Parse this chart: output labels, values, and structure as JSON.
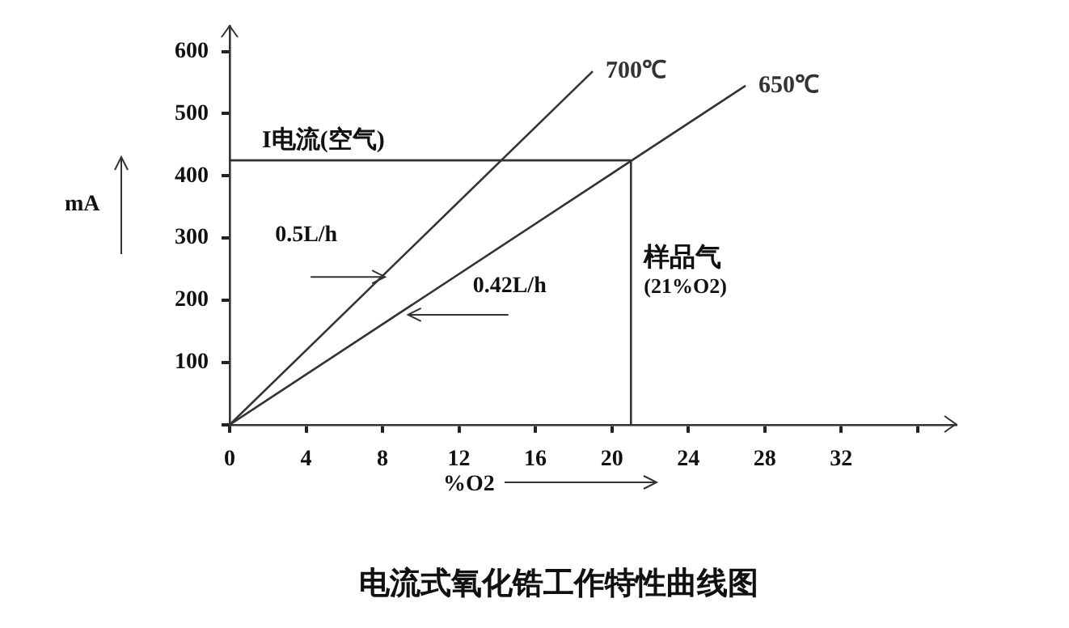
{
  "chart_data": {
    "type": "line",
    "title": "电流式氧化锆工作特性曲线图",
    "xlabel": "%O2",
    "ylabel": "mA",
    "series": [
      {
        "name": "700℃",
        "color": "#333333",
        "x": [
          0,
          19
        ],
        "values": [
          0,
          568
        ]
      },
      {
        "name": "650℃",
        "color": "#333333",
        "x": [
          0,
          27
        ],
        "values": [
          0,
          545
        ]
      }
    ],
    "xlim": [
      0,
      38
    ],
    "xticks": [
      0,
      4,
      8,
      12,
      16,
      20,
      24,
      28,
      32,
      {
        "value": 36,
        "label": null
      }
    ],
    "ylim": [
      0,
      640
    ],
    "yticks": [
      {
        "value": 0,
        "label": null
      },
      100,
      200,
      300,
      400,
      500,
      600
    ],
    "ref_lines": [
      {
        "axis": "y",
        "value": 425,
        "label": "I电流(空气)",
        "color": "#333333"
      },
      {
        "axis": "x",
        "value": 21,
        "label": "样品气\n(21%O2)",
        "color": "#333333"
      }
    ],
    "annotations": [
      {
        "text": "0.5L/h",
        "x": 8.3,
        "y": 248
      },
      {
        "text": "0.42L/h",
        "x": 9,
        "y": 182
      }
    ],
    "grid": false,
    "legend": false,
    "marker": "none",
    "line_style": "solid"
  }
}
